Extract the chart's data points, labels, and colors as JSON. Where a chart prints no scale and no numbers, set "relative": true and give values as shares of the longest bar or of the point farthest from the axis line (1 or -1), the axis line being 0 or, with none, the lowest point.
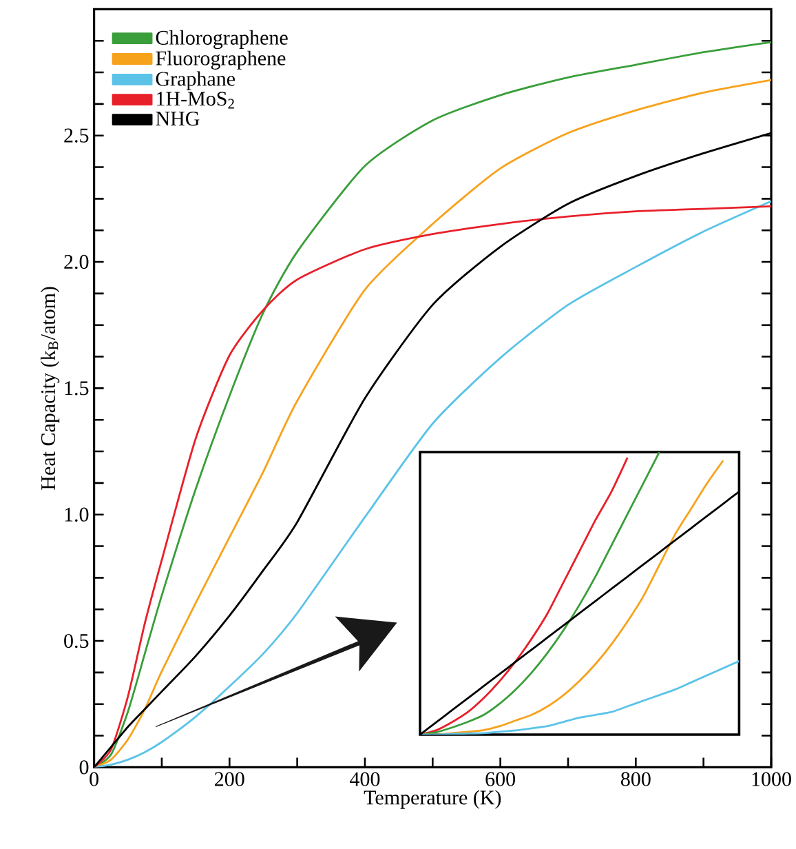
{
  "chart_data": [
    {
      "type": "line",
      "xlabel": "Temperature (K)",
      "ylabel": "Heat Capacity (k$_{B}$/atom)",
      "x": [
        0,
        25,
        50,
        75,
        100,
        150,
        200,
        250,
        300,
        400,
        500,
        600,
        700,
        800,
        900,
        1000
      ],
      "series": [
        {
          "name": "Chlorographene",
          "color": "#3a9e3a",
          "values": [
            0,
            0.05,
            0.22,
            0.45,
            0.68,
            1.1,
            1.47,
            1.8,
            2.04,
            2.38,
            2.56,
            2.66,
            2.73,
            2.78,
            2.83,
            2.87
          ]
        },
        {
          "name": "Fluorographene",
          "color": "#f7a21b",
          "values": [
            0,
            0.03,
            0.11,
            0.23,
            0.38,
            0.65,
            0.91,
            1.17,
            1.45,
            1.89,
            2.15,
            2.37,
            2.51,
            2.6,
            2.67,
            2.72
          ]
        },
        {
          "name": "Graphane",
          "color": "#5bc3e8",
          "values": [
            0,
            0.01,
            0.03,
            0.06,
            0.1,
            0.2,
            0.32,
            0.45,
            0.61,
            0.99,
            1.36,
            1.62,
            1.83,
            1.98,
            2.12,
            2.24
          ]
        },
        {
          "name": "1H-MoS$_{2}$",
          "color": "#e8202a",
          "values": [
            0,
            0.07,
            0.28,
            0.57,
            0.82,
            1.3,
            1.63,
            1.81,
            1.93,
            2.05,
            2.11,
            2.15,
            2.18,
            2.2,
            2.21,
            2.22
          ]
        },
        {
          "name": "NHG",
          "color": "#000000",
          "values": [
            0,
            0.08,
            0.16,
            0.23,
            0.3,
            0.44,
            0.6,
            0.78,
            0.97,
            1.46,
            1.83,
            2.06,
            2.23,
            2.34,
            2.43,
            2.51
          ]
        }
      ],
      "xlim": [
        0,
        1000
      ],
      "ylim": [
        0,
        3
      ],
      "xticks": [
        0,
        {
          "value": 100,
          "label": null
        },
        200,
        {
          "value": 300,
          "label": null
        },
        400,
        {
          "value": 500,
          "label": null
        },
        600,
        {
          "value": 700,
          "label": null
        },
        800,
        {
          "value": 900,
          "label": null
        },
        1000
      ],
      "yticks": [
        0,
        {
          "value": 0.125,
          "label": null
        },
        {
          "value": 0.25,
          "label": null
        },
        {
          "value": 0.375,
          "label": null
        },
        0.5,
        {
          "value": 0.625,
          "label": null
        },
        {
          "value": 0.75,
          "label": null
        },
        {
          "value": 0.875,
          "label": null
        },
        {
          "value": 1,
          "label": "1.0"
        },
        {
          "value": 1.125,
          "label": null
        },
        {
          "value": 1.25,
          "label": null
        },
        {
          "value": 1.375,
          "label": null
        },
        1.5,
        {
          "value": 1.625,
          "label": null
        },
        {
          "value": 1.75,
          "label": null
        },
        {
          "value": 1.875,
          "label": null
        },
        {
          "value": 2,
          "label": "2.0"
        },
        {
          "value": 2.125,
          "label": null
        },
        {
          "value": 2.25,
          "label": null
        },
        {
          "value": 2.375,
          "label": null
        },
        2.5,
        {
          "value": 2.625,
          "label": null
        },
        {
          "value": 2.75,
          "label": null
        },
        {
          "value": 2.875,
          "label": null
        }
      ],
      "legend": "top left",
      "grid": false,
      "line_style": "solid"
    },
    {
      "type": "line",
      "relative": true,
      "categories": [
        null,
        null,
        null,
        null,
        null,
        null,
        null,
        null,
        null,
        null,
        null,
        null,
        null,
        null,
        null,
        null,
        null,
        null,
        null,
        null,
        null
      ],
      "series": [
        {
          "color": "#e8202a",
          "values": [
            0,
            0.015,
            0.044,
            0.08,
            0.13,
            0.19,
            0.26,
            0.34,
            0.43,
            0.54,
            0.65,
            0.76,
            0.86,
            0.98,
            null,
            null,
            null,
            null,
            null,
            null,
            null
          ]
        },
        {
          "color": "#3a9e3a",
          "values": [
            0,
            0.008,
            0.025,
            0.045,
            0.07,
            0.11,
            0.16,
            0.22,
            0.29,
            0.37,
            0.46,
            0.56,
            0.67,
            0.78,
            0.89,
            1,
            null,
            null,
            null,
            null,
            null
          ]
        },
        {
          "color": "#f7a21b",
          "values": [
            0,
            0,
            0.005,
            0.01,
            0.016,
            0.03,
            0.05,
            0.07,
            0.1,
            0.14,
            0.19,
            0.25,
            0.32,
            0.4,
            0.49,
            0.6,
            0.71,
            0.8,
            0.89,
            0.97,
            null
          ]
        },
        {
          "color": "#5bc3e8",
          "values": [
            0,
            0,
            0.002,
            0.004,
            0.005,
            0.01,
            0.015,
            0.022,
            0.03,
            0.045,
            0.06,
            0.07,
            0.08,
            0.1,
            0.12,
            0.14,
            0.16,
            0.185,
            0.21,
            0.235,
            0.26
          ]
        },
        {
          "color": "#000000",
          "values": [
            0,
            0.043,
            0.086,
            0.129,
            0.172,
            0.215,
            0.258,
            0.301,
            0.344,
            0.387,
            0.43,
            0.473,
            0.516,
            0.559,
            0.602,
            0.645,
            0.688,
            0.731,
            0.774,
            0.817,
            0.86
          ]
        }
      ]
    }
  ]
}
